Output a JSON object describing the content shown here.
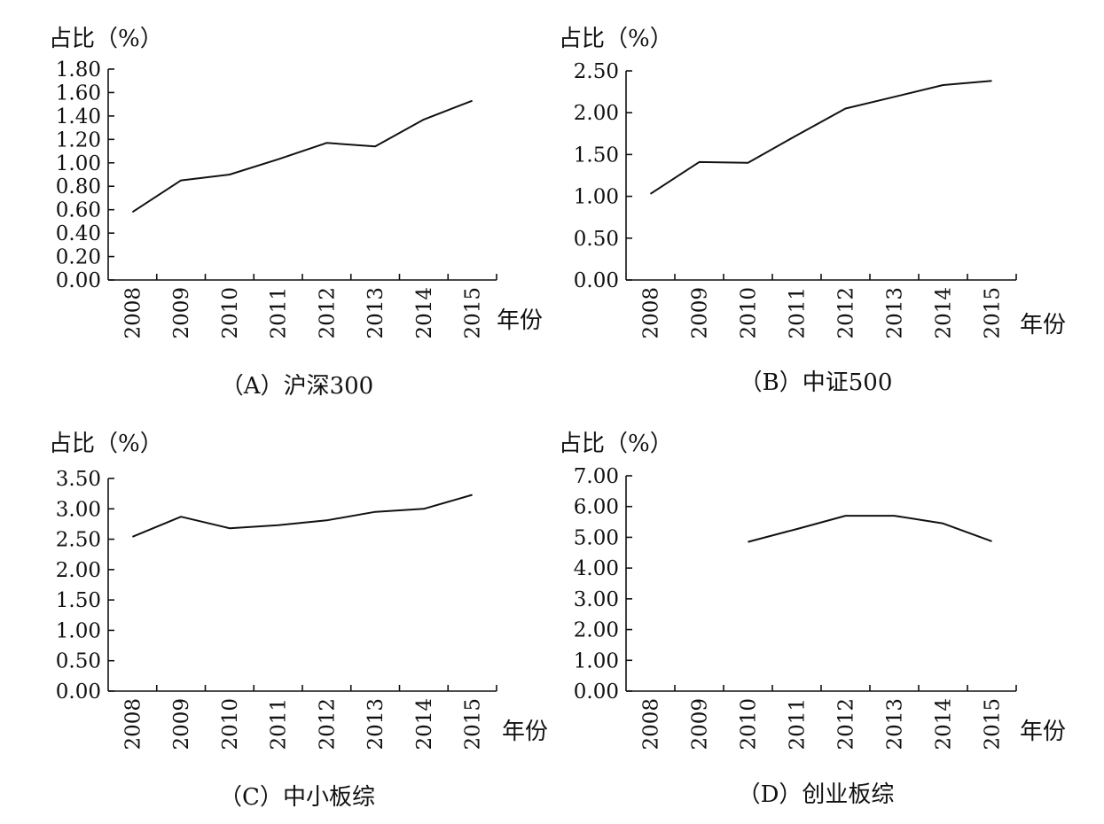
{
  "chart_data": [
    {
      "type": "line",
      "panel": "A",
      "title": "（A）沪深300",
      "ylabel": "占比（%）",
      "xlabel": "年份",
      "categories": [
        "2008",
        "2009",
        "2010",
        "2011",
        "2012",
        "2013",
        "2014",
        "2015"
      ],
      "yticks": [
        "0.00",
        "0.20",
        "0.40",
        "0.60",
        "0.80",
        "1.00",
        "1.20",
        "1.40",
        "1.60",
        "1.80"
      ],
      "ylim": [
        0,
        1.8
      ],
      "series": [
        {
          "name": "沪深300",
          "values": [
            0.58,
            0.85,
            0.9,
            1.03,
            1.17,
            1.14,
            1.37,
            1.53
          ]
        }
      ]
    },
    {
      "type": "line",
      "panel": "B",
      "title": "（B）中证500",
      "ylabel": "占比（%）",
      "xlabel": "年份",
      "categories": [
        "2008",
        "2009",
        "2010",
        "2011",
        "2012",
        "2013",
        "2014",
        "2015"
      ],
      "yticks": [
        "0.00",
        "0.50",
        "1.00",
        "1.50",
        "2.00",
        "2.50"
      ],
      "ylim": [
        0,
        2.5
      ],
      "series": [
        {
          "name": "中证500",
          "values": [
            1.03,
            1.41,
            1.4,
            1.73,
            2.05,
            2.19,
            2.33,
            2.38
          ]
        }
      ]
    },
    {
      "type": "line",
      "panel": "C",
      "title": "（C）中小板综",
      "ylabel": "占比（%）",
      "xlabel": "年份",
      "categories": [
        "2008",
        "2009",
        "2010",
        "2011",
        "2012",
        "2013",
        "2014",
        "2015"
      ],
      "yticks": [
        "0.00",
        "0.50",
        "1.00",
        "1.50",
        "2.00",
        "2.50",
        "3.00",
        "3.50"
      ],
      "ylim": [
        0,
        3.5
      ],
      "series": [
        {
          "name": "中小板综",
          "values": [
            2.54,
            2.87,
            2.68,
            2.73,
            2.81,
            2.95,
            3.0,
            3.23
          ]
        }
      ]
    },
    {
      "type": "line",
      "panel": "D",
      "title": "（D）创业板综",
      "ylabel": "占比（%）",
      "xlabel": "年份",
      "categories": [
        "2008",
        "2009",
        "2010",
        "2011",
        "2012",
        "2013",
        "2014",
        "2015"
      ],
      "yticks": [
        "0.00",
        "1.00",
        "2.00",
        "3.00",
        "4.00",
        "5.00",
        "6.00",
        "7.00"
      ],
      "ylim": [
        0,
        7
      ],
      "series": [
        {
          "name": "创业板综",
          "values": [
            null,
            null,
            4.85,
            5.27,
            5.7,
            5.7,
            5.45,
            4.87
          ]
        }
      ]
    }
  ]
}
